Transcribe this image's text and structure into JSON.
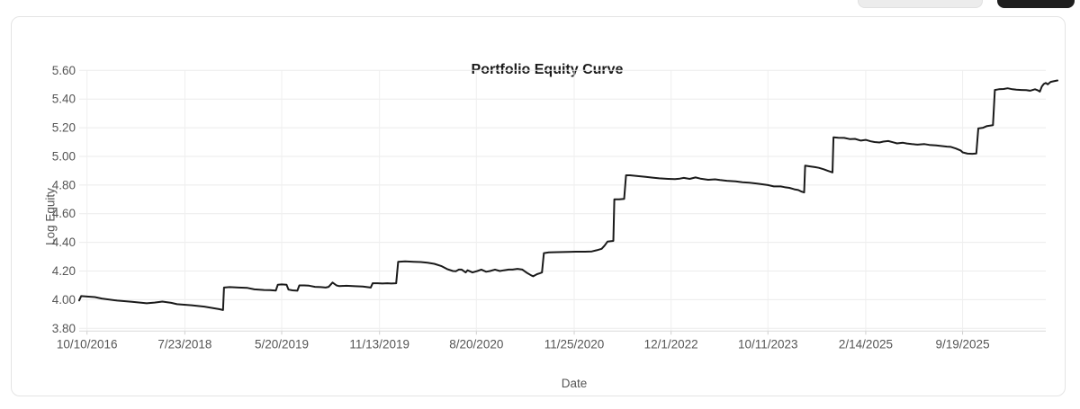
{
  "header": {
    "buttons": [
      {
        "name": "secondary-button",
        "style": "light",
        "bg": "#ececec",
        "label": ""
      },
      {
        "name": "primary-button",
        "style": "dark",
        "bg": "#1f1f1f",
        "label": ""
      }
    ]
  },
  "card": {
    "border_color": "#e4e4e4",
    "background": "#ffffff"
  },
  "chart_data": {
    "type": "line",
    "title": "Portfolio Equity Curve",
    "xlabel": "Date",
    "ylabel": "Log Equity",
    "ylim": [
      3.8,
      5.6
    ],
    "y_ticks": [
      3.8,
      4.0,
      4.2,
      4.4,
      4.6,
      4.8,
      5.0,
      5.2,
      5.4,
      5.6
    ],
    "grid": true,
    "legend": "none",
    "colors": {
      "line": "#1a1a1a",
      "grid_h": "#ebebeb",
      "grid_v": "#efefef",
      "axis": "#d9d9d9",
      "tick": "#cfcfcf",
      "label": "#555555"
    },
    "x_ticks": [
      {
        "label": "10/10/2016",
        "pos": 0.008
      },
      {
        "label": "7/23/2018",
        "pos": 0.108
      },
      {
        "label": "5/20/2019",
        "pos": 0.207
      },
      {
        "label": "11/13/2019",
        "pos": 0.307
      },
      {
        "label": "8/20/2020",
        "pos": 0.406
      },
      {
        "label": "11/25/2020",
        "pos": 0.506
      },
      {
        "label": "12/1/2022",
        "pos": 0.605
      },
      {
        "label": "10/11/2023",
        "pos": 0.704
      },
      {
        "label": "2/14/2025",
        "pos": 0.804
      },
      {
        "label": "9/19/2025",
        "pos": 0.903
      }
    ],
    "points": [
      [
        0.0,
        3.995
      ],
      [
        0.002,
        4.025
      ],
      [
        0.008,
        4.022
      ],
      [
        0.016,
        4.018
      ],
      [
        0.023,
        4.008
      ],
      [
        0.039,
        3.994
      ],
      [
        0.054,
        3.985
      ],
      [
        0.069,
        3.975
      ],
      [
        0.077,
        3.98
      ],
      [
        0.085,
        3.987
      ],
      [
        0.094,
        3.978
      ],
      [
        0.1,
        3.969
      ],
      [
        0.115,
        3.961
      ],
      [
        0.128,
        3.952
      ],
      [
        0.143,
        3.934
      ],
      [
        0.147,
        3.928
      ],
      [
        0.148,
        4.085
      ],
      [
        0.154,
        4.088
      ],
      [
        0.163,
        4.085
      ],
      [
        0.172,
        4.082
      ],
      [
        0.179,
        4.072
      ],
      [
        0.189,
        4.068
      ],
      [
        0.195,
        4.067
      ],
      [
        0.201,
        4.064
      ],
      [
        0.203,
        4.105
      ],
      [
        0.207,
        4.107
      ],
      [
        0.212,
        4.105
      ],
      [
        0.214,
        4.07
      ],
      [
        0.218,
        4.065
      ],
      [
        0.223,
        4.063
      ],
      [
        0.225,
        4.1
      ],
      [
        0.23,
        4.1
      ],
      [
        0.235,
        4.098
      ],
      [
        0.241,
        4.09
      ],
      [
        0.247,
        4.088
      ],
      [
        0.252,
        4.085
      ],
      [
        0.255,
        4.09
      ],
      [
        0.259,
        4.12
      ],
      [
        0.263,
        4.1
      ],
      [
        0.266,
        4.095
      ],
      [
        0.273,
        4.097
      ],
      [
        0.282,
        4.094
      ],
      [
        0.29,
        4.092
      ],
      [
        0.298,
        4.085
      ],
      [
        0.3,
        4.115
      ],
      [
        0.305,
        4.115
      ],
      [
        0.31,
        4.113
      ],
      [
        0.315,
        4.115
      ],
      [
        0.319,
        4.113
      ],
      [
        0.324,
        4.115
      ],
      [
        0.326,
        4.265
      ],
      [
        0.333,
        4.268
      ],
      [
        0.342,
        4.265
      ],
      [
        0.349,
        4.263
      ],
      [
        0.356,
        4.258
      ],
      [
        0.363,
        4.25
      ],
      [
        0.37,
        4.235
      ],
      [
        0.376,
        4.214
      ],
      [
        0.382,
        4.2
      ],
      [
        0.385,
        4.199
      ],
      [
        0.388,
        4.21
      ],
      [
        0.391,
        4.21
      ],
      [
        0.395,
        4.19
      ],
      [
        0.397,
        4.205
      ],
      [
        0.402,
        4.19
      ],
      [
        0.407,
        4.2
      ],
      [
        0.411,
        4.21
      ],
      [
        0.416,
        4.195
      ],
      [
        0.42,
        4.2
      ],
      [
        0.425,
        4.21
      ],
      [
        0.43,
        4.2
      ],
      [
        0.434,
        4.205
      ],
      [
        0.439,
        4.21
      ],
      [
        0.443,
        4.21
      ],
      [
        0.448,
        4.215
      ],
      [
        0.453,
        4.21
      ],
      [
        0.457,
        4.19
      ],
      [
        0.462,
        4.17
      ],
      [
        0.464,
        4.163
      ],
      [
        0.468,
        4.178
      ],
      [
        0.471,
        4.185
      ],
      [
        0.473,
        4.19
      ],
      [
        0.475,
        4.325
      ],
      [
        0.48,
        4.33
      ],
      [
        0.489,
        4.332
      ],
      [
        0.499,
        4.333
      ],
      [
        0.508,
        4.335
      ],
      [
        0.517,
        4.335
      ],
      [
        0.524,
        4.337
      ],
      [
        0.529,
        4.345
      ],
      [
        0.534,
        4.355
      ],
      [
        0.537,
        4.377
      ],
      [
        0.54,
        4.405
      ],
      [
        0.543,
        4.408
      ],
      [
        0.546,
        4.41
      ],
      [
        0.547,
        4.7
      ],
      [
        0.552,
        4.7
      ],
      [
        0.557,
        4.703
      ],
      [
        0.559,
        4.868
      ],
      [
        0.563,
        4.868
      ],
      [
        0.572,
        4.862
      ],
      [
        0.579,
        4.857
      ],
      [
        0.586,
        4.852
      ],
      [
        0.593,
        4.847
      ],
      [
        0.602,
        4.843
      ],
      [
        0.609,
        4.841
      ],
      [
        0.614,
        4.845
      ],
      [
        0.618,
        4.85
      ],
      [
        0.624,
        4.843
      ],
      [
        0.63,
        4.853
      ],
      [
        0.635,
        4.845
      ],
      [
        0.643,
        4.837
      ],
      [
        0.65,
        4.84
      ],
      [
        0.655,
        4.835
      ],
      [
        0.662,
        4.83
      ],
      [
        0.671,
        4.826
      ],
      [
        0.678,
        4.82
      ],
      [
        0.685,
        4.816
      ],
      [
        0.693,
        4.81
      ],
      [
        0.699,
        4.805
      ],
      [
        0.704,
        4.8
      ],
      [
        0.71,
        4.79
      ],
      [
        0.717,
        4.79
      ],
      [
        0.721,
        4.785
      ],
      [
        0.726,
        4.78
      ],
      [
        0.731,
        4.77
      ],
      [
        0.735,
        4.765
      ],
      [
        0.738,
        4.755
      ],
      [
        0.741,
        4.748
      ],
      [
        0.742,
        4.935
      ],
      [
        0.747,
        4.93
      ],
      [
        0.752,
        4.925
      ],
      [
        0.756,
        4.92
      ],
      [
        0.761,
        4.91
      ],
      [
        0.765,
        4.9
      ],
      [
        0.77,
        4.888
      ],
      [
        0.771,
        5.133
      ],
      [
        0.776,
        5.13
      ],
      [
        0.782,
        5.129
      ],
      [
        0.788,
        5.12
      ],
      [
        0.793,
        5.122
      ],
      [
        0.799,
        5.11
      ],
      [
        0.804,
        5.115
      ],
      [
        0.809,
        5.105
      ],
      [
        0.813,
        5.1
      ],
      [
        0.818,
        5.097
      ],
      [
        0.822,
        5.103
      ],
      [
        0.827,
        5.107
      ],
      [
        0.832,
        5.098
      ],
      [
        0.836,
        5.091
      ],
      [
        0.842,
        5.095
      ],
      [
        0.846,
        5.09
      ],
      [
        0.851,
        5.086
      ],
      [
        0.857,
        5.082
      ],
      [
        0.864,
        5.086
      ],
      [
        0.869,
        5.08
      ],
      [
        0.876,
        5.076
      ],
      [
        0.882,
        5.072
      ],
      [
        0.887,
        5.068
      ],
      [
        0.891,
        5.066
      ],
      [
        0.896,
        5.055
      ],
      [
        0.901,
        5.041
      ],
      [
        0.903,
        5.028
      ],
      [
        0.908,
        5.019
      ],
      [
        0.913,
        5.018
      ],
      [
        0.917,
        5.02
      ],
      [
        0.919,
        5.195
      ],
      [
        0.924,
        5.2
      ],
      [
        0.928,
        5.212
      ],
      [
        0.934,
        5.218
      ],
      [
        0.936,
        5.463
      ],
      [
        0.94,
        5.468
      ],
      [
        0.945,
        5.47
      ],
      [
        0.949,
        5.475
      ],
      [
        0.954,
        5.468
      ],
      [
        0.958,
        5.465
      ],
      [
        0.963,
        5.463
      ],
      [
        0.968,
        5.462
      ],
      [
        0.972,
        5.458
      ],
      [
        0.977,
        5.468
      ],
      [
        0.98,
        5.46
      ],
      [
        0.982,
        5.452
      ],
      [
        0.984,
        5.488
      ],
      [
        0.986,
        5.505
      ],
      [
        0.988,
        5.512
      ],
      [
        0.99,
        5.503
      ],
      [
        0.993,
        5.52
      ],
      [
        0.996,
        5.524
      ],
      [
        1.0,
        5.53
      ]
    ]
  }
}
